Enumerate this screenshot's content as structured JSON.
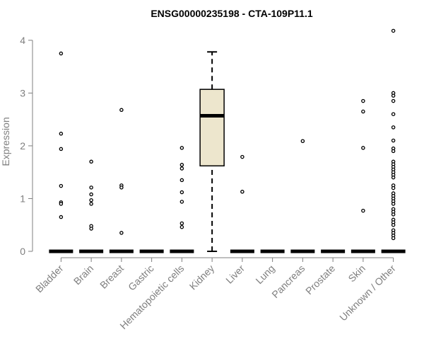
{
  "chart_data": {
    "type": "box",
    "title": "ENSG00000235198 - CTA-109P11.1",
    "xlabel": "",
    "ylabel": "Expression",
    "ylim": [
      0,
      4.2
    ],
    "yticks": [
      0,
      1,
      2,
      3,
      4
    ],
    "categories": [
      "Bladder",
      "Brain",
      "Breast",
      "Gastric",
      "Hematopoietic cells",
      "Kidney",
      "Liver",
      "Lung",
      "Pancreas",
      "Prostate",
      "Skin",
      "Unknown / Other"
    ],
    "box_fill": "#ede6cd",
    "boxes": [
      {
        "category": "Bladder",
        "min": 0,
        "q1": 0,
        "median": 0,
        "q3": 0,
        "max": 0,
        "outliers": [
          3.75,
          2.23,
          1.94,
          1.24,
          0.93,
          0.9,
          0.65
        ]
      },
      {
        "category": "Brain",
        "min": 0,
        "q1": 0,
        "median": 0,
        "q3": 0,
        "max": 0,
        "outliers": [
          1.7,
          1.21,
          1.08,
          0.97,
          0.9,
          0.48,
          0.43
        ]
      },
      {
        "category": "Breast",
        "min": 0,
        "q1": 0,
        "median": 0,
        "q3": 0,
        "max": 0,
        "outliers": [
          2.68,
          1.25,
          1.21,
          0.35
        ]
      },
      {
        "category": "Gastric",
        "min": 0,
        "q1": 0,
        "median": 0,
        "q3": 0,
        "max": 0,
        "outliers": []
      },
      {
        "category": "Hematopoietic cells",
        "min": 0,
        "q1": 0,
        "median": 0,
        "q3": 0,
        "max": 0,
        "outliers": [
          1.96,
          1.64,
          1.57,
          1.35,
          1.12,
          0.94,
          0.53,
          0.46
        ]
      },
      {
        "category": "Kidney",
        "min": 0,
        "q1": 1.62,
        "median": 2.57,
        "q3": 3.07,
        "max": 3.78,
        "outliers": []
      },
      {
        "category": "Liver",
        "min": 0,
        "q1": 0,
        "median": 0,
        "q3": 0,
        "max": 0,
        "outliers": [
          1.79,
          1.13
        ]
      },
      {
        "category": "Lung",
        "min": 0,
        "q1": 0,
        "median": 0,
        "q3": 0,
        "max": 0,
        "outliers": []
      },
      {
        "category": "Pancreas",
        "min": 0,
        "q1": 0,
        "median": 0,
        "q3": 0,
        "max": 0,
        "outliers": [
          2.09
        ]
      },
      {
        "category": "Prostate",
        "min": 0,
        "q1": 0,
        "median": 0,
        "q3": 0,
        "max": 0,
        "outliers": []
      },
      {
        "category": "Skin",
        "min": 0,
        "q1": 0,
        "median": 0,
        "q3": 0,
        "max": 0,
        "outliers": [
          2.85,
          2.65,
          1.96,
          0.77
        ]
      },
      {
        "category": "Unknown / Other",
        "min": 0,
        "q1": 0,
        "median": 0,
        "q3": 0,
        "max": 0,
        "outliers": [
          4.18,
          3.0,
          2.95,
          2.85,
          2.6,
          2.35,
          2.1,
          1.95,
          1.9,
          1.7,
          1.65,
          1.6,
          1.55,
          1.5,
          1.45,
          1.4,
          1.25,
          1.2,
          1.1,
          1.05,
          1.0,
          0.95,
          0.9,
          0.8,
          0.75,
          0.7,
          0.6,
          0.55,
          0.5,
          0.4,
          0.35,
          0.3,
          0.25
        ]
      }
    ]
  }
}
